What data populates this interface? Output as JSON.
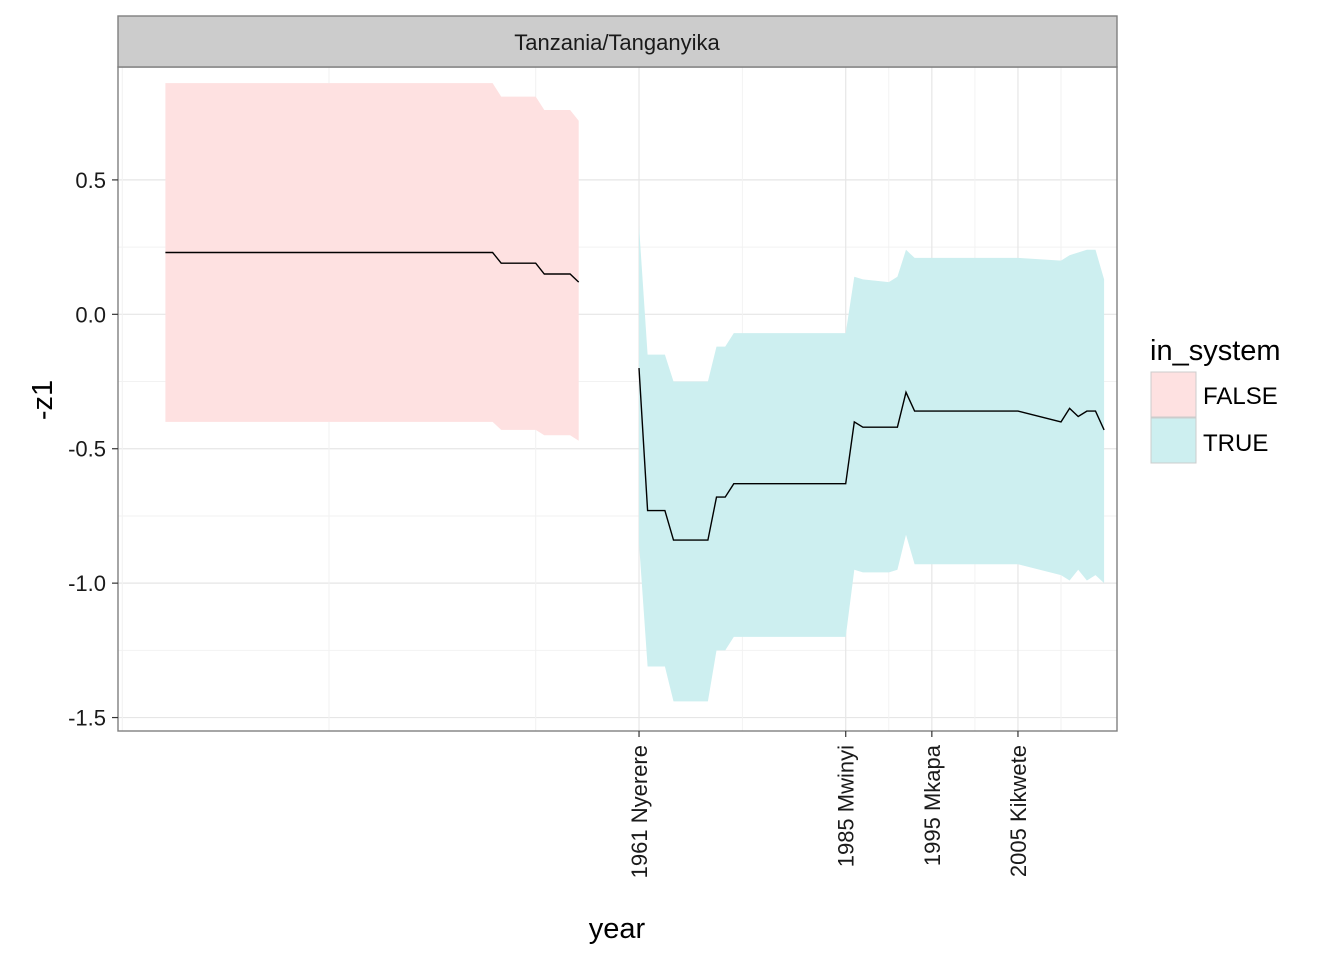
{
  "chart_data": {
    "type": "area",
    "facet_label": "Tanzania/Tanganyika",
    "xlabel": "year",
    "ylabel": "-z1",
    "xlim": [
      1900.5,
      2016.5
    ],
    "ylim": [
      -1.55,
      0.92
    ],
    "yticks": [
      0.5,
      0.0,
      -0.5,
      -1.0,
      -1.5
    ],
    "ytick_labels": [
      "0.5",
      "0.0",
      "-0.5",
      "-1.0",
      "-1.5"
    ],
    "xticks": [
      1961,
      1985,
      1995,
      2005
    ],
    "xtick_labels": [
      "1961 Nyerere",
      "1985 Mwinyi",
      "1995 Mkapa",
      "2005 Kikwete"
    ],
    "grid": true,
    "legend": {
      "title": "in_system",
      "position": "right",
      "entries": [
        {
          "label": "FALSE",
          "color": "#fee1e1"
        },
        {
          "label": "TRUE",
          "color": "#cdeff0"
        }
      ]
    },
    "series": [
      {
        "name": "FALSE",
        "fill": "#fee1e1",
        "line_color": "#000000",
        "x": [
          1906,
          1944,
          1945,
          1948,
          1949,
          1950,
          1951,
          1953,
          1954
        ],
        "y": [
          0.23,
          0.23,
          0.19,
          0.19,
          0.19,
          0.15,
          0.15,
          0.15,
          0.12
        ],
        "upper": [
          0.86,
          0.86,
          0.81,
          0.81,
          0.81,
          0.76,
          0.76,
          0.76,
          0.72
        ],
        "lower": [
          -0.4,
          -0.4,
          -0.43,
          -0.43,
          -0.43,
          -0.45,
          -0.45,
          -0.45,
          -0.47
        ]
      },
      {
        "name": "TRUE",
        "fill": "#cdeff0",
        "line_color": "#000000",
        "x": [
          1961,
          1962,
          1964,
          1965,
          1969,
          1970,
          1971,
          1972,
          1985,
          1986,
          1987,
          1990,
          1991,
          1992,
          1993,
          2005,
          2010,
          2011,
          2012,
          2013,
          2014,
          2015
        ],
        "y": [
          -0.2,
          -0.73,
          -0.73,
          -0.84,
          -0.84,
          -0.68,
          -0.68,
          -0.63,
          -0.63,
          -0.4,
          -0.42,
          -0.42,
          -0.42,
          -0.29,
          -0.36,
          -0.36,
          -0.4,
          -0.35,
          -0.38,
          -0.36,
          -0.36,
          -0.43
        ],
        "upper": [
          0.33,
          -0.15,
          -0.15,
          -0.25,
          -0.25,
          -0.12,
          -0.12,
          -0.07,
          -0.07,
          0.14,
          0.13,
          0.12,
          0.14,
          0.24,
          0.21,
          0.21,
          0.2,
          0.22,
          0.23,
          0.24,
          0.24,
          0.13
        ],
        "lower": [
          -0.85,
          -1.31,
          -1.31,
          -1.44,
          -1.44,
          -1.25,
          -1.25,
          -1.2,
          -1.2,
          -0.95,
          -0.96,
          -0.96,
          -0.95,
          -0.82,
          -0.93,
          -0.93,
          -0.97,
          -0.99,
          -0.95,
          -0.99,
          -0.97,
          -1.0
        ]
      }
    ]
  }
}
